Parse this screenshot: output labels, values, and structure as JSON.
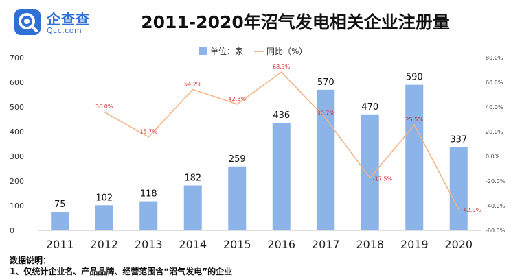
{
  "brand": {
    "name": "企查查",
    "domain": "Qcc.com"
  },
  "notes": {
    "heading": "数据说明：",
    "line1": "1、仅统计企业名、产品品牌、经营范围含“沼气发电”的企业"
  },
  "colors": {
    "bar": "#8cb4e8",
    "line": "#f4b183",
    "line_label": "#d62c2c",
    "logo": "#2f6fd6"
  },
  "chart_data": {
    "type": "bar",
    "title": "2011-2020年沼气发电相关企业注册量",
    "categories": [
      "2011",
      "2012",
      "2013",
      "2014",
      "2015",
      "2016",
      "2017",
      "2018",
      "2019",
      "2020"
    ],
    "series": [
      {
        "name": "单位：家",
        "type": "bar",
        "axis": "left",
        "values": [
          75,
          102,
          118,
          182,
          259,
          436,
          570,
          470,
          590,
          337
        ],
        "labels": [
          "75",
          "102",
          "118",
          "182",
          "259",
          "436",
          "570",
          "470",
          "590",
          "337"
        ]
      },
      {
        "name": "同比（%）",
        "type": "line",
        "axis": "right",
        "values": [
          null,
          36.0,
          15.7,
          54.2,
          42.3,
          68.3,
          30.7,
          -17.5,
          25.5,
          -42.9
        ],
        "labels": [
          "",
          "36.0%",
          "15.7%",
          "54.2%",
          "42.3%",
          "68.3%",
          "30.7%",
          "-17.5%",
          "25.5%",
          "-42.9%"
        ]
      }
    ],
    "y_left": {
      "ylim": [
        0,
        700
      ],
      "ticks": [
        "0",
        "100",
        "200",
        "300",
        "400",
        "500",
        "600",
        "700"
      ]
    },
    "y_right": {
      "ylim": [
        -60,
        80
      ],
      "ticks": [
        "-60.0%",
        "-40.0%",
        "-20.0%",
        "0.0%",
        "20.0%",
        "40.0%",
        "60.0%",
        "80.0%"
      ]
    },
    "legend": {
      "position": "top-center"
    },
    "grid": false
  }
}
